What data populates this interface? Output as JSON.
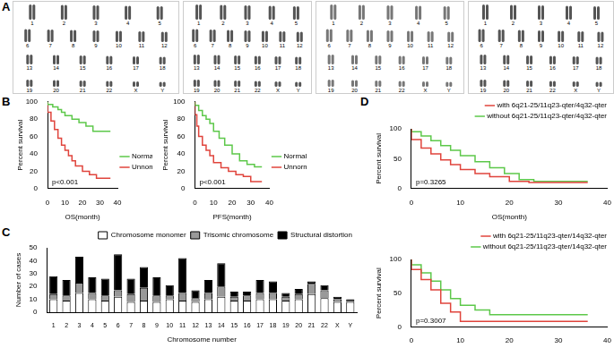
{
  "figure": {
    "panel_labels": [
      "A",
      "B",
      "C",
      "D"
    ],
    "karyotypes": [
      {
        "labels": [
          "1",
          "2",
          "3",
          "4",
          "5",
          "6",
          "7",
          "8",
          "9",
          "10",
          "11",
          "12",
          "13",
          "14",
          "15",
          "16",
          "17",
          "18",
          "19",
          "20",
          "21",
          "22",
          "X",
          "Y"
        ]
      },
      {
        "labels": [
          "1",
          "2",
          "3",
          "4",
          "5",
          "6",
          "7",
          "8",
          "9",
          "10",
          "11",
          "12",
          "13",
          "14",
          "15",
          "16",
          "17",
          "18",
          "19",
          "20",
          "21",
          "22",
          "X",
          "Y"
        ]
      },
      {
        "labels": [
          "1",
          "2",
          "3",
          "4",
          "5",
          "6",
          "7",
          "8",
          "9",
          "10",
          "11",
          "12",
          "13",
          "14",
          "15",
          "16",
          "17",
          "18",
          "19",
          "20",
          "21",
          "22",
          "X",
          "Y"
        ]
      },
      {
        "labels": [
          "1",
          "2",
          "3",
          "4",
          "5",
          "6",
          "7",
          "8",
          "9",
          "10",
          "11",
          "12",
          "13",
          "14",
          "15",
          "16",
          "17",
          "18",
          "19",
          "20",
          "21",
          "22",
          "X",
          "Y"
        ]
      }
    ]
  },
  "chart_data": [
    {
      "type": "line",
      "panel": "B",
      "x_label": "OS(month)",
      "y_label": "Percent survival",
      "annotation": "p<0.001",
      "xlim": [
        0,
        40
      ],
      "xticks": [
        0,
        10,
        20,
        30,
        40
      ],
      "ylim": [
        0,
        100
      ],
      "yticks": [
        0,
        20,
        40,
        60,
        80,
        100
      ],
      "grid": false,
      "legend": "right",
      "series": [
        {
          "name": "Normal",
          "color": "#5dc84a",
          "line_style": "steps",
          "x": [
            0,
            3,
            6,
            8,
            10,
            14,
            18,
            22,
            26,
            30,
            36
          ],
          "values": [
            100,
            97,
            94,
            91,
            88,
            84,
            80,
            76,
            72,
            66,
            66
          ]
        },
        {
          "name": "Unnormal",
          "color": "#e0443c",
          "line_style": "steps",
          "x": [
            0,
            2,
            4,
            6,
            8,
            10,
            12,
            14,
            16,
            20,
            24,
            28,
            32,
            36
          ],
          "values": [
            100,
            88,
            78,
            68,
            58,
            50,
            44,
            38,
            32,
            26,
            20,
            16,
            12,
            12
          ]
        }
      ]
    },
    {
      "type": "line",
      "panel": "B",
      "x_label": "PFS(month)",
      "y_label": "Percent survival",
      "annotation": "p<0.001",
      "xlim": [
        0,
        40
      ],
      "xticks": [
        0,
        10,
        20,
        30,
        40
      ],
      "ylim": [
        0,
        100
      ],
      "yticks": [
        0,
        20,
        40,
        60,
        80,
        100
      ],
      "grid": false,
      "legend": "right",
      "series": [
        {
          "name": "Normal",
          "color": "#5dc84a",
          "line_style": "steps",
          "x": [
            0,
            2,
            4,
            6,
            8,
            10,
            13,
            16,
            20,
            24,
            28,
            32,
            36
          ],
          "values": [
            100,
            96,
            90,
            84,
            80,
            75,
            66,
            58,
            50,
            40,
            32,
            28,
            25
          ]
        },
        {
          "name": "Unnormal",
          "color": "#e0443c",
          "line_style": "steps",
          "x": [
            0,
            1,
            2,
            4,
            6,
            8,
            10,
            14,
            18,
            22,
            26,
            30,
            34,
            36
          ],
          "values": [
            100,
            85,
            72,
            60,
            50,
            44,
            38,
            30,
            24,
            20,
            16,
            14,
            8,
            8
          ]
        }
      ]
    },
    {
      "type": "bar",
      "panel": "C",
      "x_label": "Chromosome number",
      "y_label": "Number of cases",
      "stacked": true,
      "grid": false,
      "legend": "top",
      "categories": [
        "1",
        "2",
        "3",
        "4",
        "5",
        "6",
        "7",
        "8",
        "9",
        "10",
        "11",
        "12",
        "13",
        "14",
        "15",
        "16",
        "17",
        "18",
        "19",
        "20",
        "21",
        "22",
        "X",
        "Y"
      ],
      "ylim": [
        0,
        50
      ],
      "yticks": [
        0,
        10,
        20,
        30,
        40,
        50
      ],
      "series": [
        {
          "name": "Chromosome monomer",
          "color": "#ffffff",
          "values": [
            10,
            9,
            15,
            10,
            9,
            12,
            8,
            9,
            8,
            10,
            9,
            8,
            10,
            12,
            9,
            9,
            10,
            10,
            9,
            10,
            14,
            11,
            8,
            8
          ]
        },
        {
          "name": "Trisomic chromosome",
          "color": "#999999",
          "values": [
            4,
            4,
            8,
            5,
            4,
            5,
            6,
            10,
            5,
            3,
            6,
            3,
            5,
            8,
            3,
            4,
            5,
            5,
            3,
            4,
            8,
            6,
            2,
            1
          ]
        },
        {
          "name": "Structural distortion",
          "color": "#000000",
          "values": [
            14,
            12,
            20,
            12,
            13,
            28,
            12,
            16,
            14,
            8,
            27,
            6,
            10,
            18,
            4,
            3,
            10,
            9,
            3,
            4,
            2,
            4,
            2,
            1
          ]
        }
      ]
    },
    {
      "type": "line",
      "panel": "D",
      "x_label": "OS(month)",
      "y_label": "Percent survival",
      "annotation": "p=0.3265",
      "xlim": [
        0,
        40
      ],
      "xticks": [
        0,
        10,
        20,
        30,
        40
      ],
      "ylim": [
        0,
        100
      ],
      "yticks": [
        0,
        50,
        100
      ],
      "grid": false,
      "legend": "top",
      "series": [
        {
          "name": "with 6q21-25/11q23-qter/4q32-qter",
          "color": "#e0443c",
          "line_style": "steps",
          "x": [
            0,
            2,
            4,
            6,
            8,
            10,
            13,
            16,
            20,
            24,
            28,
            36
          ],
          "values": [
            100,
            82,
            68,
            58,
            48,
            40,
            32,
            25,
            20,
            12,
            10,
            10
          ]
        },
        {
          "name": "without 6q21-25/11q23-qter/4q32-qter",
          "color": "#5dc84a",
          "line_style": "steps",
          "x": [
            0,
            2,
            4,
            6,
            8,
            10,
            13,
            16,
            19,
            22,
            25,
            27,
            36
          ],
          "values": [
            100,
            95,
            88,
            80,
            72,
            64,
            55,
            45,
            35,
            25,
            15,
            12,
            12
          ]
        }
      ]
    },
    {
      "type": "line",
      "y_label": "Percent survival",
      "annotation": "p=0.3007",
      "xlim": [
        0,
        40
      ],
      "xticks": [
        0,
        10,
        20,
        30,
        40
      ],
      "ylim": [
        0,
        100
      ],
      "yticks": [
        0,
        50,
        100
      ],
      "grid": false,
      "legend": "top",
      "series": [
        {
          "name": "with 6q21-25/11q23-qter/14q32-qter",
          "color": "#e0443c",
          "line_style": "steps",
          "x": [
            0,
            2,
            4,
            6,
            8,
            10,
            12,
            36
          ],
          "values": [
            100,
            85,
            70,
            55,
            35,
            22,
            8,
            8
          ]
        },
        {
          "name": "without 6q21-25/11q23-qter/14q32-qter",
          "color": "#5dc84a",
          "line_style": "steps",
          "x": [
            0,
            2,
            4,
            6,
            8,
            10,
            13,
            16,
            20,
            24,
            36
          ],
          "values": [
            100,
            92,
            80,
            68,
            55,
            42,
            32,
            25,
            18,
            18,
            18
          ]
        }
      ]
    }
  ]
}
